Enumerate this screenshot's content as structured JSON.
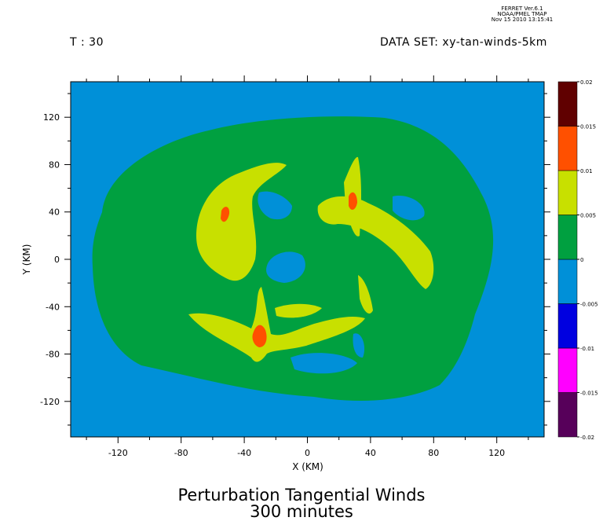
{
  "header": {
    "software_line1": "FERRET  Ver.6.1",
    "software_line2": "NOAA/PMEL TMAP",
    "software_line3": "Nov 15 2010 13:15:41",
    "time_label": "T : 30",
    "dataset_label": "DATA SET: xy-tan-winds-5km"
  },
  "chart_data": {
    "type": "heatmap",
    "title": "Perturbation Tangential Winds",
    "subtitle": "300 minutes",
    "xlabel": "X (KM)",
    "ylabel": "Y (KM)",
    "xlim": [
      -150,
      150
    ],
    "ylim": [
      -150,
      150
    ],
    "x_ticks": [
      -120,
      -80,
      -40,
      0,
      40,
      80,
      120
    ],
    "y_ticks": [
      120,
      80,
      40,
      0,
      -40,
      -80,
      -120
    ],
    "colorbar": {
      "levels": [
        -0.02,
        -0.015,
        -0.01,
        -0.005,
        0,
        0.005,
        0.01,
        0.015,
        0.02
      ],
      "level_labels": [
        "-0.02",
        "-0.015",
        "-0.01",
        "-0.005",
        "0",
        "0.005",
        "0.01",
        "0.015",
        "0.02"
      ],
      "colors": [
        "#57005a",
        "#ff00ff",
        "#0000e0",
        "#0090d8",
        "#00a040",
        "#c8e000",
        "#ff5000",
        "#600000"
      ]
    },
    "regions": [
      {
        "level": "0 to 0.005",
        "description": "broad positive ring",
        "color": "#00a040"
      },
      {
        "level": "0.005 to 0.01",
        "description": "spiral band segments",
        "color": "#c8e000"
      },
      {
        "level": "0.01 to 0.015",
        "description": "local maxima",
        "color": "#ff5000"
      }
    ]
  }
}
